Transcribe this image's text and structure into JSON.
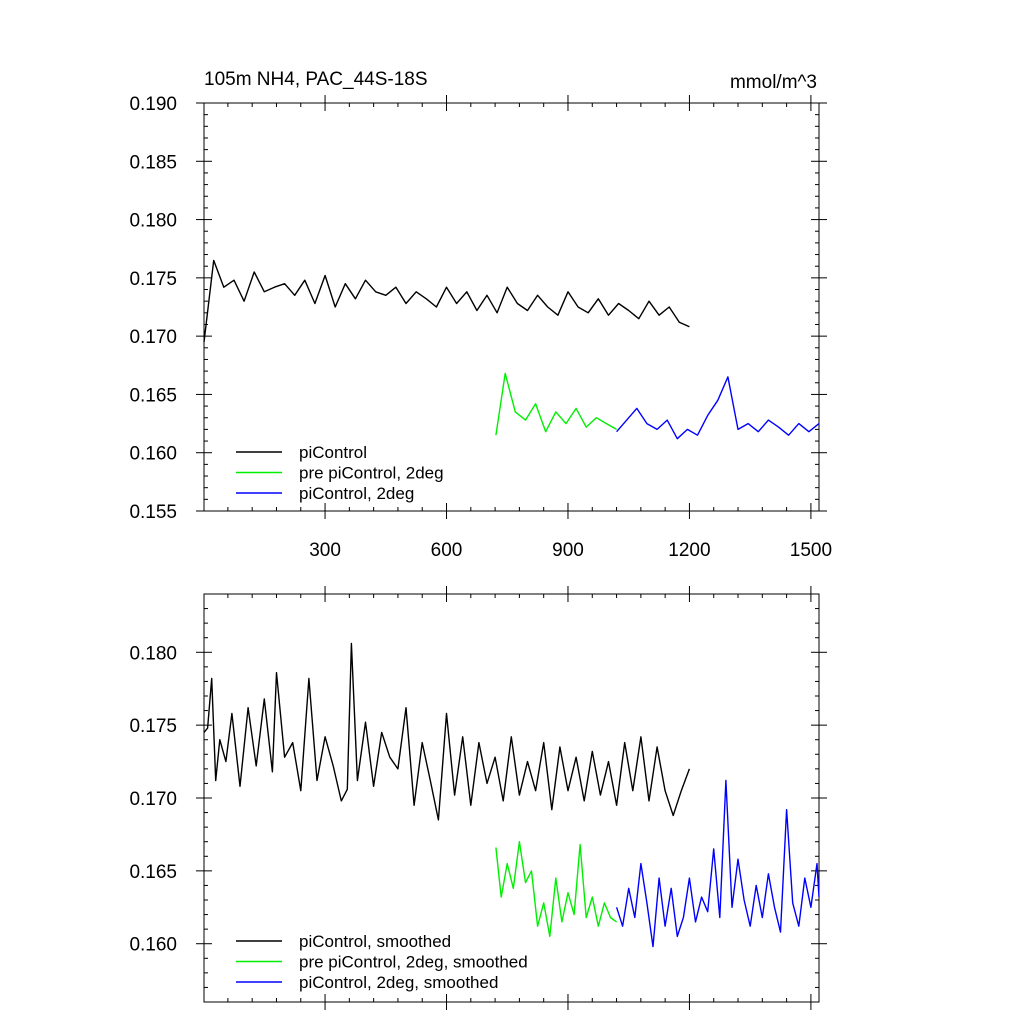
{
  "chart_data": [
    {
      "type": "line",
      "title": "105m NH4, PAC_44S-18S",
      "units": "mmol/m^3",
      "xlim": [
        1,
        1520
      ],
      "ylim": [
        0.155,
        0.19
      ],
      "xticks": [
        300,
        600,
        900,
        1200,
        1500
      ],
      "xtick_labels": [
        "300",
        "600",
        "900",
        "1200",
        "1500"
      ],
      "yticks": [
        0.155,
        0.16,
        0.165,
        0.17,
        0.175,
        0.18,
        0.185,
        0.19
      ],
      "ytick_labels": [
        "0.155",
        "0.160",
        "0.165",
        "0.170",
        "0.175",
        "0.180",
        "0.185",
        "0.190"
      ],
      "grid": false,
      "legend_position": "bottom-left",
      "series": [
        {
          "name": "piControl",
          "color": "#000000",
          "x": [
            1,
            25,
            50,
            75,
            100,
            125,
            150,
            175,
            200,
            225,
            250,
            275,
            300,
            325,
            350,
            375,
            400,
            425,
            450,
            475,
            500,
            525,
            550,
            575,
            600,
            625,
            650,
            675,
            700,
            725,
            750,
            775,
            800,
            825,
            850,
            875,
            900,
            925,
            950,
            975,
            1000,
            1025,
            1050,
            1075,
            1100,
            1125,
            1150,
            1175,
            1200
          ],
          "y": [
            0.1695,
            0.1765,
            0.1742,
            0.1748,
            0.173,
            0.1755,
            0.1738,
            0.1742,
            0.1745,
            0.1735,
            0.1748,
            0.1728,
            0.1752,
            0.1725,
            0.1745,
            0.1732,
            0.1748,
            0.1738,
            0.1735,
            0.1742,
            0.1728,
            0.1738,
            0.1732,
            0.1725,
            0.1742,
            0.1728,
            0.1738,
            0.1722,
            0.1735,
            0.172,
            0.1742,
            0.1728,
            0.1722,
            0.1735,
            0.1725,
            0.1718,
            0.1738,
            0.1725,
            0.172,
            0.1732,
            0.1718,
            0.1728,
            0.1722,
            0.1715,
            0.173,
            0.1718,
            0.1725,
            0.1712,
            0.1708
          ]
        },
        {
          "name": "pre piControl, 2deg",
          "color": "#00ee00",
          "x": [
            722,
            745,
            770,
            795,
            820,
            845,
            870,
            895,
            920,
            945,
            970,
            995,
            1020
          ],
          "y": [
            0.1615,
            0.1668,
            0.1635,
            0.1628,
            0.1642,
            0.1618,
            0.1635,
            0.1625,
            0.1638,
            0.1622,
            0.163,
            0.1625,
            0.162
          ]
        },
        {
          "name": "piControl, 2deg",
          "color": "#0000ff",
          "x": [
            1020,
            1045,
            1070,
            1095,
            1120,
            1145,
            1170,
            1195,
            1220,
            1245,
            1270,
            1295,
            1320,
            1345,
            1370,
            1395,
            1420,
            1445,
            1470,
            1495,
            1520
          ],
          "y": [
            0.1618,
            0.1628,
            0.1638,
            0.1625,
            0.162,
            0.1628,
            0.1612,
            0.162,
            0.1615,
            0.1632,
            0.1645,
            0.1665,
            0.162,
            0.1625,
            0.1618,
            0.1628,
            0.1622,
            0.1615,
            0.1625,
            0.1618,
            0.1625
          ]
        }
      ]
    },
    {
      "type": "line",
      "xlim": [
        1,
        1520
      ],
      "ylim": [
        0.156,
        0.184
      ],
      "xticks": [
        300,
        600,
        900,
        1200,
        1500
      ],
      "yticks": [
        0.16,
        0.165,
        0.17,
        0.175,
        0.18
      ],
      "ytick_labels": [
        "0.160",
        "0.165",
        "0.170",
        "0.175",
        "0.180"
      ],
      "grid": false,
      "legend_position": "bottom-left",
      "series": [
        {
          "name": "piControl, smoothed",
          "color": "#000000",
          "x": [
            1,
            10,
            20,
            30,
            40,
            55,
            70,
            90,
            110,
            130,
            150,
            170,
            180,
            200,
            220,
            240,
            260,
            280,
            300,
            320,
            340,
            355,
            365,
            380,
            400,
            420,
            440,
            460,
            480,
            500,
            520,
            540,
            560,
            580,
            600,
            620,
            640,
            660,
            680,
            700,
            720,
            740,
            760,
            780,
            800,
            820,
            840,
            860,
            880,
            900,
            920,
            940,
            960,
            980,
            1000,
            1020,
            1040,
            1060,
            1080,
            1100,
            1120,
            1140,
            1160,
            1180,
            1200
          ],
          "y": [
            0.1745,
            0.1748,
            0.1782,
            0.1712,
            0.174,
            0.1725,
            0.1758,
            0.1708,
            0.1762,
            0.1722,
            0.1768,
            0.1718,
            0.1786,
            0.1728,
            0.1738,
            0.1705,
            0.1782,
            0.1712,
            0.1742,
            0.1722,
            0.1698,
            0.1706,
            0.1806,
            0.1712,
            0.1752,
            0.1708,
            0.1745,
            0.1728,
            0.172,
            0.1762,
            0.1695,
            0.1738,
            0.1712,
            0.1685,
            0.1758,
            0.1702,
            0.1742,
            0.1695,
            0.1738,
            0.171,
            0.1728,
            0.1698,
            0.1742,
            0.1702,
            0.1725,
            0.1705,
            0.1738,
            0.1692,
            0.1735,
            0.1705,
            0.1728,
            0.1698,
            0.1732,
            0.1702,
            0.1725,
            0.1695,
            0.1738,
            0.1705,
            0.1742,
            0.1698,
            0.1735,
            0.1705,
            0.1688,
            0.1705,
            0.172
          ]
        },
        {
          "name": "pre piControl, 2deg, smoothed",
          "color": "#00ee00",
          "x": [
            722,
            735,
            750,
            765,
            780,
            795,
            810,
            825,
            840,
            855,
            870,
            885,
            900,
            915,
            930,
            945,
            960,
            975,
            990,
            1005,
            1020
          ],
          "y": [
            0.1666,
            0.1632,
            0.1655,
            0.1638,
            0.167,
            0.1642,
            0.165,
            0.1612,
            0.1628,
            0.1605,
            0.1645,
            0.1615,
            0.1635,
            0.162,
            0.1668,
            0.1618,
            0.1632,
            0.1612,
            0.1628,
            0.1618,
            0.1615
          ]
        },
        {
          "name": "piControl, 2deg, smoothed",
          "color": "#0000ff",
          "x": [
            1020,
            1035,
            1050,
            1065,
            1080,
            1095,
            1110,
            1125,
            1140,
            1155,
            1170,
            1185,
            1200,
            1215,
            1230,
            1245,
            1260,
            1275,
            1290,
            1305,
            1320,
            1335,
            1350,
            1365,
            1380,
            1395,
            1410,
            1425,
            1440,
            1455,
            1470,
            1485,
            1500,
            1515,
            1520
          ],
          "y": [
            0.1625,
            0.1612,
            0.1638,
            0.1618,
            0.1655,
            0.1628,
            0.1598,
            0.1645,
            0.1612,
            0.1638,
            0.1605,
            0.1618,
            0.1645,
            0.1615,
            0.1632,
            0.1622,
            0.1665,
            0.1618,
            0.1712,
            0.1625,
            0.1658,
            0.163,
            0.1612,
            0.164,
            0.1618,
            0.1648,
            0.1625,
            0.1608,
            0.1692,
            0.1628,
            0.1612,
            0.1645,
            0.1625,
            0.1655,
            0.1632
          ]
        }
      ]
    }
  ]
}
